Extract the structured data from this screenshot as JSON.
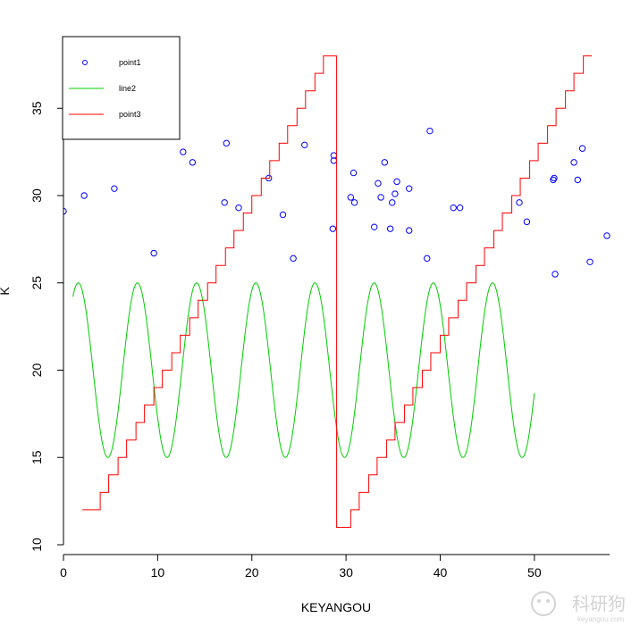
{
  "chart_data": {
    "type": "line",
    "xlabel": "KEYANGOU",
    "ylabel": "K",
    "xlim": [
      0,
      58
    ],
    "ylim": [
      10,
      38.5
    ],
    "x_ticks": [
      "0",
      "10",
      "20",
      "30",
      "40",
      "50"
    ],
    "y_ticks": [
      "10",
      "15",
      "20",
      "25",
      "30",
      "35"
    ],
    "grid": false,
    "legend_position": "top-left",
    "series": [
      {
        "name": "point1",
        "kind": "scatter",
        "color": "#0000ff",
        "points": [
          [
            0.0,
            29.1
          ],
          [
            2.2,
            30.0
          ],
          [
            5.4,
            30.4
          ],
          [
            9.6,
            26.7
          ],
          [
            12.7,
            32.5
          ],
          [
            13.7,
            31.9
          ],
          [
            17.1,
            29.6
          ],
          [
            17.3,
            33.0
          ],
          [
            18.6,
            29.3
          ],
          [
            21.8,
            31.0
          ],
          [
            23.3,
            28.9
          ],
          [
            24.4,
            26.4
          ],
          [
            25.6,
            32.9
          ],
          [
            28.6,
            28.1
          ],
          [
            28.7,
            32.3
          ],
          [
            28.7,
            32.0
          ],
          [
            30.5,
            29.9
          ],
          [
            30.8,
            31.3
          ],
          [
            30.9,
            29.6
          ],
          [
            33.0,
            28.2
          ],
          [
            33.4,
            30.7
          ],
          [
            33.7,
            29.9
          ],
          [
            34.1,
            31.9
          ],
          [
            34.7,
            28.1
          ],
          [
            34.9,
            29.6
          ],
          [
            35.2,
            30.1
          ],
          [
            35.4,
            30.8
          ],
          [
            36.7,
            28.0
          ],
          [
            36.7,
            30.4
          ],
          [
            38.6,
            26.4
          ],
          [
            38.9,
            33.7
          ],
          [
            41.4,
            29.3
          ],
          [
            42.1,
            29.3
          ],
          [
            48.4,
            29.6
          ],
          [
            49.2,
            28.5
          ],
          [
            52.0,
            30.9
          ],
          [
            52.1,
            31.0
          ],
          [
            52.2,
            25.5
          ],
          [
            54.2,
            31.9
          ],
          [
            54.6,
            30.9
          ],
          [
            55.1,
            32.7
          ],
          [
            55.9,
            26.2
          ],
          [
            57.7,
            27.7
          ]
        ]
      },
      {
        "name": "line2",
        "kind": "line",
        "color": "#00cc00",
        "function": "20 + 5*sin(x)",
        "x_range": [
          1.0,
          50.0
        ]
      },
      {
        "name": "point3",
        "kind": "step",
        "color": "#ff0000",
        "x": [
          2.0,
          2.9,
          3.9,
          4.8,
          5.8,
          6.7,
          7.7,
          8.6,
          9.6,
          10.5,
          11.5,
          12.4,
          13.4,
          14.3,
          15.3,
          16.2,
          17.2,
          18.1,
          19.1,
          20.0,
          21.0,
          21.9,
          22.9,
          23.8,
          24.8,
          25.7,
          26.7,
          27.6,
          28.6,
          29.0,
          29.5,
          30.5,
          31.4,
          32.4,
          33.3,
          34.3,
          35.2,
          36.2,
          37.1,
          38.1,
          39.0,
          40.0,
          40.9,
          41.9,
          42.8,
          43.8,
          44.7,
          45.7,
          46.6,
          47.6,
          48.5,
          49.5,
          50.4,
          51.4,
          52.3,
          53.3,
          54.2,
          55.2,
          56.1
        ],
        "y": [
          12,
          12,
          13,
          14,
          15,
          16,
          17,
          18,
          19,
          20,
          21,
          22,
          23,
          24,
          25,
          26,
          27,
          28,
          29,
          30,
          31,
          32,
          33,
          34,
          35,
          36,
          37,
          38,
          38,
          11,
          11,
          12,
          13,
          14,
          15,
          16,
          17,
          18,
          19,
          20,
          21,
          22,
          23,
          24,
          25,
          26,
          27,
          28,
          29,
          30,
          31,
          32,
          33,
          34,
          35,
          36,
          37,
          38,
          38
        ]
      }
    ]
  },
  "watermark": {
    "text_cn": "科研狗",
    "text_url": "keyangou.com"
  }
}
